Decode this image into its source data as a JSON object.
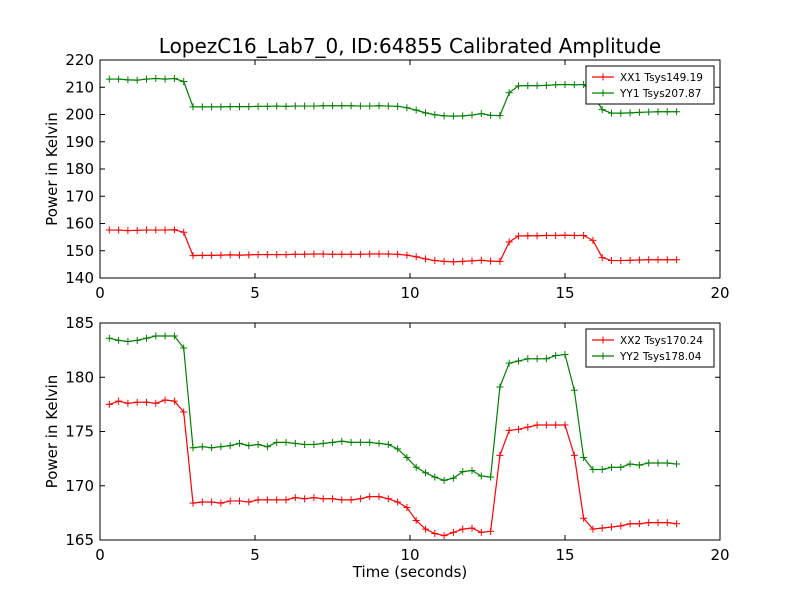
{
  "figure_title": "LopezC16_Lab7_0, ID:64855 Calibrated Amplitude",
  "colors": {
    "red": "#ff0000",
    "green": "#008000"
  },
  "chart_data": [
    {
      "type": "line",
      "ylabel": "Power in Kelvin",
      "xlabel": "",
      "xlim": [
        0,
        20
      ],
      "ylim": [
        140,
        220
      ],
      "x_ticks": [
        0,
        5,
        10,
        15,
        20
      ],
      "y_ticks": [
        140,
        150,
        160,
        170,
        180,
        190,
        200,
        210,
        220
      ],
      "grid": false,
      "legend_position": "top-right",
      "x": [
        0.3,
        0.6,
        0.9,
        1.2,
        1.5,
        1.8,
        2.1,
        2.4,
        2.7,
        3.0,
        3.3,
        3.6,
        3.9,
        4.2,
        4.5,
        4.8,
        5.1,
        5.4,
        5.7,
        6.0,
        6.3,
        6.6,
        6.9,
        7.2,
        7.5,
        7.8,
        8.1,
        8.4,
        8.7,
        9.0,
        9.3,
        9.6,
        9.9,
        10.2,
        10.5,
        10.8,
        11.1,
        11.4,
        11.7,
        12.0,
        12.3,
        12.6,
        12.9,
        13.2,
        13.5,
        13.8,
        14.1,
        14.4,
        14.7,
        15.0,
        15.3,
        15.6,
        15.9,
        16.2,
        16.5,
        16.8,
        17.1,
        17.4,
        17.7,
        18.0,
        18.3,
        18.6
      ],
      "series": [
        {
          "name": "XX1 Tsys149.19",
          "color": "#ff0000",
          "values": [
            157.6,
            157.6,
            157.4,
            157.5,
            157.6,
            157.6,
            157.6,
            157.7,
            156.8,
            148.2,
            148.3,
            148.3,
            148.4,
            148.5,
            148.4,
            148.5,
            148.6,
            148.6,
            148.6,
            148.6,
            148.7,
            148.7,
            148.8,
            148.8,
            148.7,
            148.7,
            148.7,
            148.7,
            148.8,
            148.8,
            148.8,
            148.7,
            148.4,
            147.8,
            147.0,
            146.4,
            146.1,
            145.9,
            146.1,
            146.3,
            146.5,
            146.2,
            146.1,
            153.2,
            155.4,
            155.5,
            155.5,
            155.6,
            155.6,
            155.7,
            155.6,
            155.6,
            153.8,
            147.5,
            146.4,
            146.4,
            146.5,
            146.6,
            146.7,
            146.7,
            146.7,
            146.7
          ]
        },
        {
          "name": "YY1 Tsys207.87",
          "color": "#008000",
          "values": [
            213.0,
            213.0,
            212.7,
            212.6,
            213.0,
            213.2,
            213.0,
            213.2,
            212.1,
            202.8,
            202.8,
            202.8,
            202.8,
            202.9,
            202.9,
            202.9,
            203.0,
            203.0,
            203.1,
            203.0,
            203.1,
            203.1,
            203.1,
            203.2,
            203.2,
            203.2,
            203.2,
            203.1,
            203.1,
            203.2,
            203.1,
            203.0,
            202.5,
            201.6,
            200.6,
            199.9,
            199.5,
            199.4,
            199.5,
            199.8,
            200.3,
            199.7,
            199.6,
            208.0,
            210.5,
            210.6,
            210.6,
            210.7,
            210.9,
            211.0,
            210.9,
            211.0,
            207.6,
            201.8,
            200.5,
            200.5,
            200.6,
            200.8,
            200.9,
            201.0,
            201.0,
            201.0
          ]
        }
      ]
    },
    {
      "type": "line",
      "ylabel": "Power in Kelvin",
      "xlabel": "Time (seconds)",
      "xlim": [
        0,
        20
      ],
      "ylim": [
        165,
        185
      ],
      "x_ticks": [
        0,
        5,
        10,
        15,
        20
      ],
      "y_ticks": [
        165,
        170,
        175,
        180,
        185
      ],
      "grid": false,
      "legend_position": "top-right",
      "x": [
        0.3,
        0.6,
        0.9,
        1.2,
        1.5,
        1.8,
        2.1,
        2.4,
        2.7,
        3.0,
        3.3,
        3.6,
        3.9,
        4.2,
        4.5,
        4.8,
        5.1,
        5.4,
        5.7,
        6.0,
        6.3,
        6.6,
        6.9,
        7.2,
        7.5,
        7.8,
        8.1,
        8.4,
        8.7,
        9.0,
        9.3,
        9.6,
        9.9,
        10.2,
        10.5,
        10.8,
        11.1,
        11.4,
        11.7,
        12.0,
        12.3,
        12.6,
        12.9,
        13.2,
        13.5,
        13.8,
        14.1,
        14.4,
        14.7,
        15.0,
        15.3,
        15.6,
        15.9,
        16.2,
        16.5,
        16.8,
        17.1,
        17.4,
        17.7,
        18.0,
        18.3,
        18.6
      ],
      "series": [
        {
          "name": "XX2 Tsys170.24",
          "color": "#ff0000",
          "values": [
            177.5,
            177.8,
            177.6,
            177.7,
            177.7,
            177.6,
            177.9,
            177.8,
            176.8,
            168.4,
            168.5,
            168.5,
            168.4,
            168.6,
            168.6,
            168.5,
            168.7,
            168.7,
            168.7,
            168.7,
            168.9,
            168.8,
            168.9,
            168.8,
            168.8,
            168.7,
            168.7,
            168.8,
            169.0,
            169.0,
            168.8,
            168.5,
            168.0,
            166.8,
            166.0,
            165.6,
            165.4,
            165.7,
            166.0,
            166.1,
            165.7,
            165.8,
            172.8,
            175.1,
            175.2,
            175.4,
            175.6,
            175.6,
            175.6,
            175.6,
            172.8,
            167.0,
            166.0,
            166.1,
            166.2,
            166.3,
            166.5,
            166.5,
            166.6,
            166.6,
            166.6,
            166.5
          ],
          "x_override": [
            0.3,
            0.6,
            0.9,
            1.2,
            1.5,
            1.8,
            2.1,
            2.4,
            2.7,
            3.0,
            3.3,
            3.6,
            3.9,
            4.2,
            4.5,
            4.8,
            5.1,
            5.4,
            5.7,
            6.0,
            6.3,
            6.6,
            6.9,
            7.2,
            7.5,
            7.8,
            8.1,
            8.4,
            8.7,
            9.0,
            9.3,
            9.6,
            9.9,
            10.2,
            10.5,
            10.8,
            11.1,
            11.4,
            11.7,
            12.0,
            12.3,
            12.6,
            12.9,
            13.2,
            13.5,
            13.8,
            14.1,
            14.4,
            14.7,
            15.0,
            15.3,
            15.6,
            15.9,
            16.2,
            16.5,
            16.8,
            17.1,
            17.4,
            17.7,
            18.0,
            18.3,
            18.6
          ]
        },
        {
          "name": "YY2 Tsys178.04",
          "color": "#008000",
          "values": [
            183.6,
            183.4,
            183.3,
            183.4,
            183.6,
            183.8,
            183.8,
            183.8,
            182.7,
            173.5,
            173.6,
            173.5,
            173.6,
            173.7,
            173.9,
            173.7,
            173.8,
            173.6,
            174.0,
            174.0,
            173.9,
            173.8,
            173.8,
            173.9,
            174.0,
            174.1,
            174.0,
            174.0,
            174.0,
            173.9,
            173.8,
            173.4,
            172.6,
            171.7,
            171.2,
            170.8,
            170.5,
            170.7,
            171.3,
            171.4,
            170.9,
            170.8,
            179.1,
            181.3,
            181.5,
            181.7,
            181.7,
            181.7,
            182.0,
            182.1,
            178.8,
            172.6,
            171.5,
            171.5,
            171.7,
            171.7,
            172.0,
            171.9,
            172.1,
            172.1,
            172.1,
            172.0
          ]
        }
      ]
    }
  ]
}
